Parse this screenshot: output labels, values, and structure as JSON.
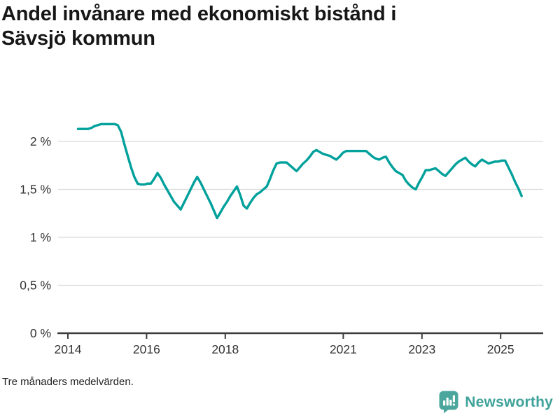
{
  "title": {
    "lines": [
      "Andel invånare med ekonomiskt bistånd i",
      "Sävsjö kommun"
    ]
  },
  "footnote": "Tre månaders medelvärden.",
  "logo": {
    "text": "Newsworthy",
    "icon": "bar-chart-speech-bubble-icon",
    "text_color": "#3fa29a",
    "icon_color": "#4ba79e"
  },
  "colors": {
    "line": "#00a09b",
    "grid": "#d9d9d9",
    "axis": "#3c3c3c",
    "tick_text": "#333333",
    "title_text": "#171717"
  },
  "chart_data": {
    "type": "line",
    "title": "Andel invånare med ekonomiskt bistånd i Sävsjö kommun",
    "note": "Tre månaders medelvärden.",
    "x_unit": "month",
    "grid": "horizontal",
    "legend": "none",
    "line_color": "#00a09b",
    "ylim": [
      0,
      2.3
    ],
    "yticks": [
      {
        "label": "0 %",
        "value": 0
      },
      {
        "label": "0,5 %",
        "value": 0.5
      },
      {
        "label": "1 %",
        "value": 1
      },
      {
        "label": "1,5 %",
        "value": 1.5
      },
      {
        "label": "2 %",
        "value": 2
      }
    ],
    "xticks": [
      {
        "label": "2014",
        "year": 2014
      },
      {
        "label": "2016",
        "year": 2016
      },
      {
        "label": "2018",
        "year": 2018
      },
      {
        "label": "2021",
        "year": 2021
      },
      {
        "label": "2023",
        "year": 2023
      },
      {
        "label": "2025",
        "year": 2025
      }
    ],
    "x": [
      "2014-04",
      "2014-05",
      "2014-06",
      "2014-07",
      "2014-08",
      "2014-09",
      "2014-10",
      "2014-11",
      "2014-12",
      "2015-01",
      "2015-02",
      "2015-03",
      "2015-04",
      "2015-05",
      "2015-06",
      "2015-07",
      "2015-08",
      "2015-09",
      "2015-10",
      "2015-11",
      "2015-12",
      "2016-01",
      "2016-02",
      "2016-03",
      "2016-04",
      "2016-05",
      "2016-06",
      "2016-07",
      "2016-08",
      "2016-09",
      "2016-10",
      "2016-11",
      "2016-12",
      "2017-01",
      "2017-02",
      "2017-03",
      "2017-04",
      "2017-05",
      "2017-06",
      "2017-07",
      "2017-08",
      "2017-09",
      "2017-10",
      "2017-11",
      "2017-12",
      "2018-01",
      "2018-02",
      "2018-03",
      "2018-04",
      "2018-05",
      "2018-06",
      "2018-07",
      "2018-08",
      "2018-09",
      "2018-10",
      "2018-11",
      "2018-12",
      "2019-01",
      "2019-02",
      "2019-03",
      "2019-04",
      "2019-05",
      "2019-06",
      "2019-07",
      "2019-08",
      "2019-09",
      "2019-10",
      "2019-11",
      "2019-12",
      "2020-01",
      "2020-02",
      "2020-03",
      "2020-04",
      "2020-05",
      "2020-06",
      "2020-07",
      "2020-08",
      "2020-09",
      "2020-10",
      "2020-11",
      "2020-12",
      "2021-01",
      "2021-02",
      "2021-03",
      "2021-04",
      "2021-05",
      "2021-06",
      "2021-07",
      "2021-08",
      "2021-09",
      "2021-10",
      "2021-11",
      "2021-12",
      "2022-01",
      "2022-02",
      "2022-03",
      "2022-04",
      "2022-05",
      "2022-06",
      "2022-07",
      "2022-08",
      "2022-09",
      "2022-10",
      "2022-11",
      "2022-12",
      "2023-01",
      "2023-02",
      "2023-03",
      "2023-04",
      "2023-05",
      "2023-06",
      "2023-07",
      "2023-08",
      "2023-09",
      "2023-10",
      "2023-11",
      "2023-12",
      "2024-01",
      "2024-02",
      "2024-03",
      "2024-04",
      "2024-05",
      "2024-06",
      "2024-07",
      "2024-08",
      "2024-09",
      "2024-10",
      "2024-11",
      "2024-12",
      "2025-01",
      "2025-02",
      "2025-03",
      "2025-04",
      "2025-05",
      "2025-06"
    ],
    "series": [
      {
        "name": "Andel invånare med ekonomiskt bistånd (%)",
        "values": [
          2.13,
          2.13,
          2.13,
          2.13,
          2.14,
          2.16,
          2.17,
          2.18,
          2.18,
          2.18,
          2.18,
          2.18,
          2.17,
          2.1,
          1.97,
          1.85,
          1.73,
          1.63,
          1.56,
          1.55,
          1.55,
          1.56,
          1.56,
          1.61,
          1.67,
          1.62,
          1.55,
          1.49,
          1.43,
          1.37,
          1.33,
          1.29,
          1.36,
          1.43,
          1.5,
          1.57,
          1.63,
          1.57,
          1.5,
          1.43,
          1.36,
          1.28,
          1.2,
          1.26,
          1.32,
          1.37,
          1.43,
          1.48,
          1.53,
          1.44,
          1.33,
          1.3,
          1.36,
          1.41,
          1.45,
          1.47,
          1.5,
          1.53,
          1.61,
          1.7,
          1.77,
          1.78,
          1.78,
          1.78,
          1.75,
          1.72,
          1.69,
          1.73,
          1.77,
          1.8,
          1.84,
          1.89,
          1.91,
          1.89,
          1.87,
          1.86,
          1.85,
          1.83,
          1.81,
          1.84,
          1.88,
          1.9,
          1.9,
          1.9,
          1.9,
          1.9,
          1.9,
          1.9,
          1.87,
          1.84,
          1.82,
          1.81,
          1.83,
          1.84,
          1.78,
          1.73,
          1.69,
          1.67,
          1.65,
          1.59,
          1.55,
          1.52,
          1.5,
          1.57,
          1.63,
          1.7,
          1.7,
          1.71,
          1.72,
          1.69,
          1.66,
          1.64,
          1.68,
          1.72,
          1.76,
          1.79,
          1.81,
          1.83,
          1.79,
          1.76,
          1.74,
          1.78,
          1.81,
          1.79,
          1.77,
          1.78,
          1.79,
          1.79,
          1.8,
          1.8,
          1.73,
          1.66,
          1.58,
          1.51,
          1.43
        ]
      }
    ]
  }
}
